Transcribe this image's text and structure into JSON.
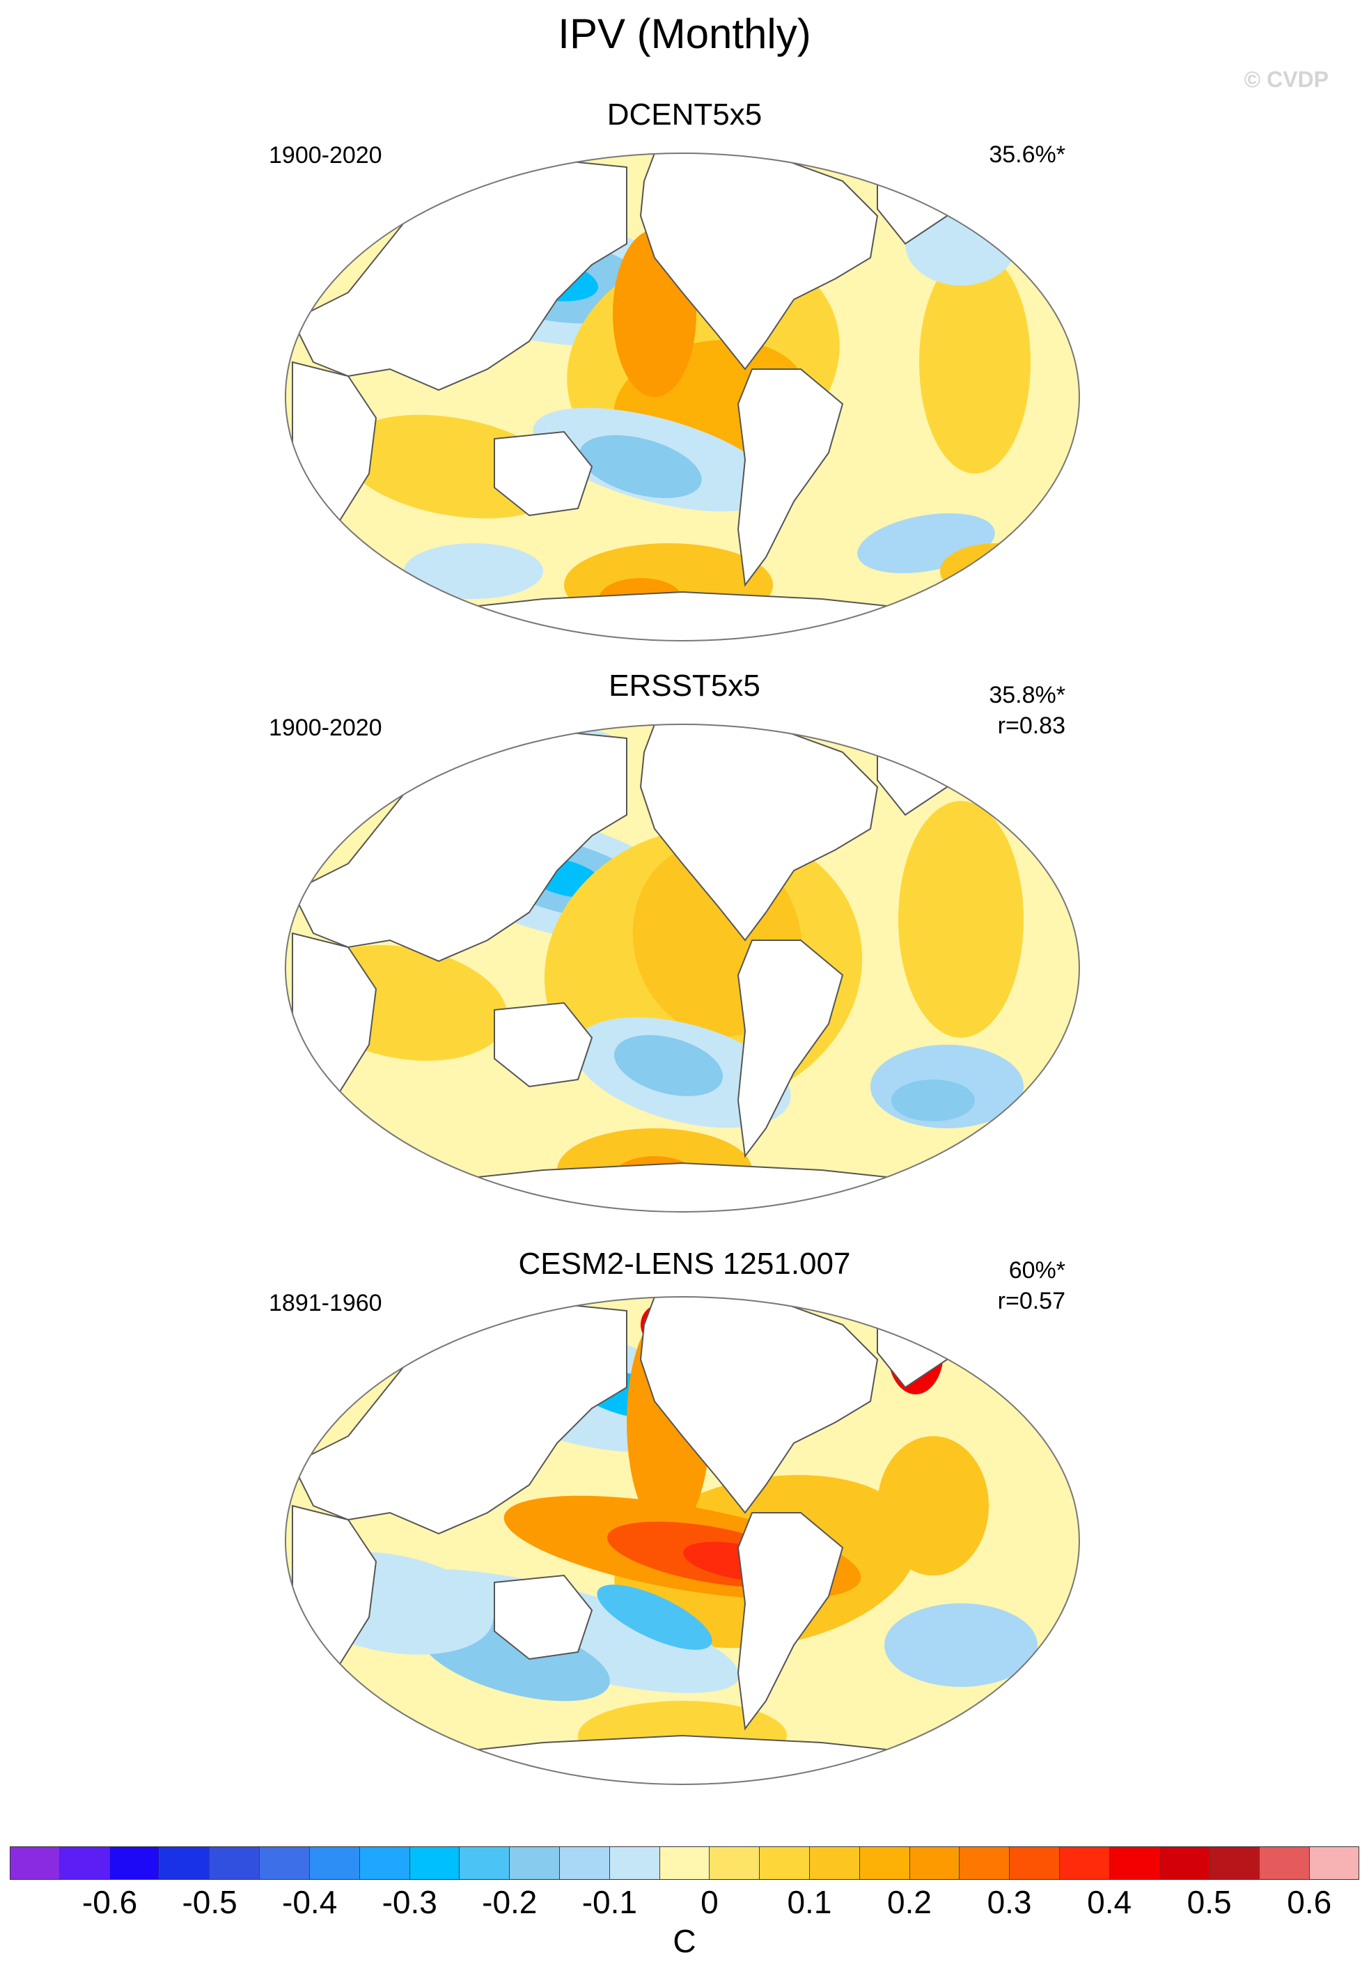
{
  "figure": {
    "title": "IPV (Monthly)",
    "watermark": "© CVDP"
  },
  "panels": [
    {
      "title": "DCENT5x5",
      "period": "1900-2020",
      "variance": "35.6%*",
      "correlation": ""
    },
    {
      "title": "ERSST5x5",
      "period": "1900-2020",
      "variance": "35.8%*",
      "correlation": "r=0.83"
    },
    {
      "title": "CESM2-LENS 1251.007",
      "period": "1891-1960",
      "variance": "60%*",
      "correlation": "r=0.57"
    }
  ],
  "colorbar": {
    "unit": "C",
    "colors": [
      "#8a2be2",
      "#5b1ff5",
      "#1d09f5",
      "#1a32e6",
      "#3250e0",
      "#3d6fe9",
      "#2d8ef5",
      "#1fa6ff",
      "#00bfff",
      "#4cc3f5",
      "#87cbee",
      "#a8d8f5",
      "#c5e6f7",
      "#fff6b0",
      "#fde467",
      "#fdd73a",
      "#fdc520",
      "#fdb006",
      "#fd9a00",
      "#fd7800",
      "#fd5404",
      "#ff2b0a",
      "#f20000",
      "#d40008",
      "#b8151a",
      "#e55a5a",
      "#f7b3b3"
    ],
    "tick_labels": [
      "-0.6",
      "-0.5",
      "-0.4",
      "-0.3",
      "-0.2",
      "-0.1",
      "0",
      "0.1",
      "0.2",
      "0.3",
      "0.4",
      "0.5",
      "0.6"
    ]
  }
}
